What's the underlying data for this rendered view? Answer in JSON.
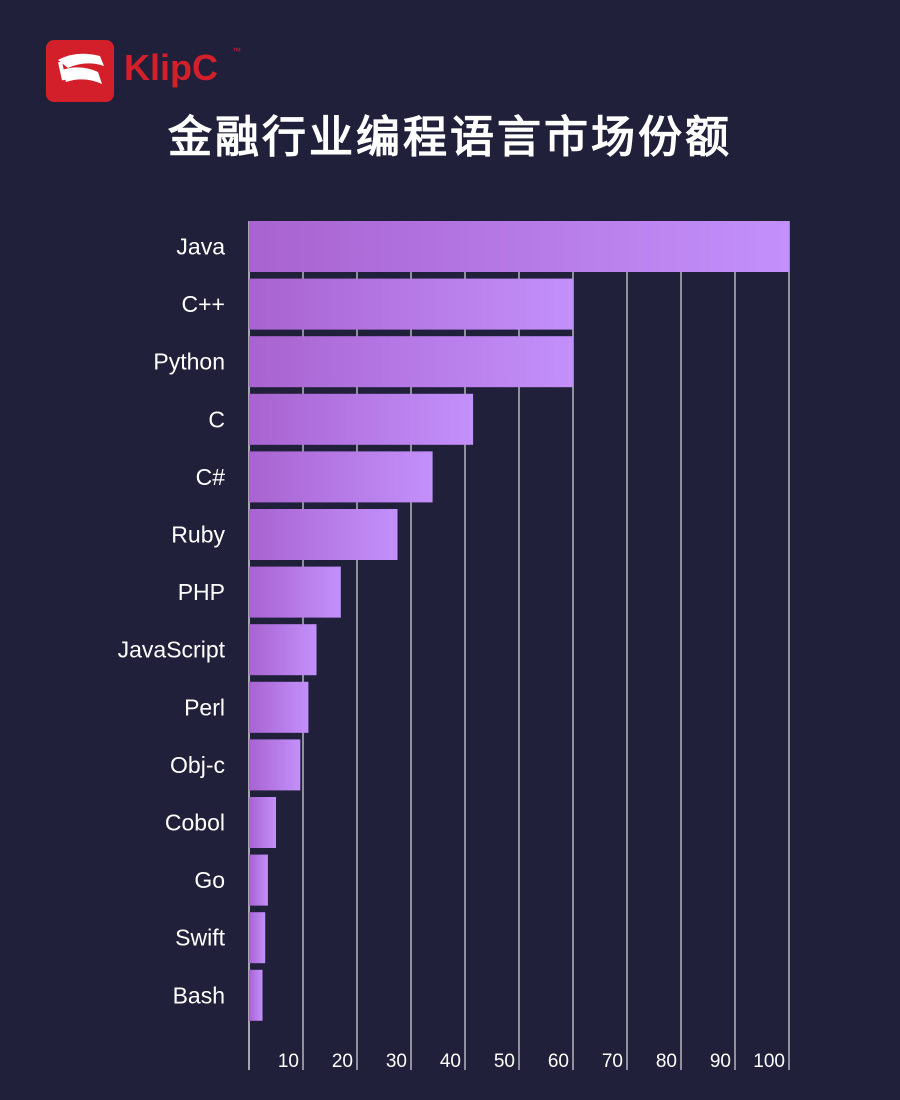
{
  "brand": {
    "name": "KlipC",
    "trademark": "™",
    "color": "#d21f2a"
  },
  "chart_data": {
    "type": "bar",
    "orientation": "horizontal",
    "title": "金融行业编程语言市场份额",
    "categories": [
      "Java",
      "C++",
      "Python",
      "C",
      "C#",
      "Ruby",
      "PHP",
      "JavaScript",
      "Perl",
      "Obj-c",
      "Cobol",
      "Go",
      "Swift",
      "Bash"
    ],
    "values": [
      100,
      60,
      60,
      41.5,
      34,
      27.5,
      17,
      12.5,
      11,
      9.5,
      5,
      3.5,
      3,
      2.5
    ],
    "xlim": [
      0,
      100
    ],
    "xticks": [
      10,
      20,
      30,
      40,
      50,
      60,
      70,
      80,
      90,
      100
    ],
    "grid": true,
    "colors": {
      "bar_start": "#a863d0",
      "bar_end": "#c390fb",
      "grid": "#ffffff",
      "label": "#ffffff",
      "background": "#20203a"
    }
  }
}
